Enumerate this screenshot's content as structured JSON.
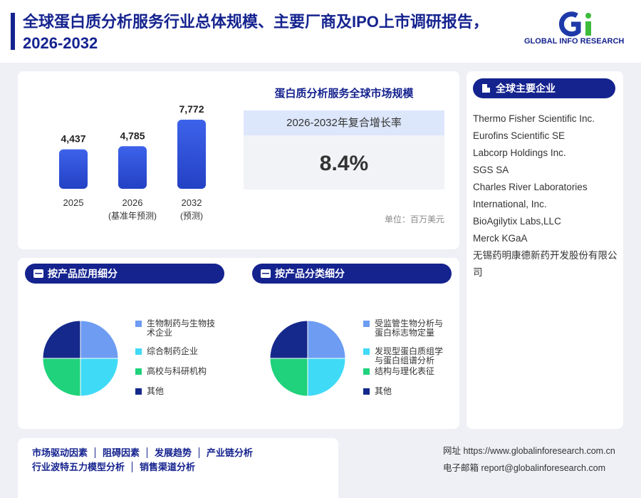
{
  "header": {
    "title": "全球蛋白质分析服务行业总体规模、主要厂商及IPO上市调研报告，2026-2032",
    "logo": "GLOBAL INFO RESEARCH"
  },
  "market_summary": {
    "cagr_label": "2026-2032年复合增长率",
    "cagr": "8.4%",
    "unit": "单位：百万美元"
  },
  "chart_data": [
    {
      "type": "bar",
      "title": "蛋白质分析服务全球市场规模",
      "categories": [
        "2025",
        "2026",
        "2032"
      ],
      "category_notes": [
        null,
        "(基准年预测)",
        "(预测)"
      ],
      "values": [
        4437,
        4785,
        7772
      ],
      "value_labels": [
        "4,437",
        "4,785",
        "7,772"
      ],
      "color": "#2341c4"
    },
    {
      "type": "pie",
      "title": "按产品应用细分",
      "categories": [
        "生物制药与生物技术企业",
        "综合制药企业",
        "高校与科研机构",
        "其他"
      ],
      "values": [
        25,
        25,
        25,
        25
      ],
      "colors": [
        "#6e9cf2",
        "#3fdaf6",
        "#1fd27b",
        "#15298c"
      ]
    },
    {
      "type": "pie",
      "title": "按产品分类细分",
      "categories": [
        "受监管生物分析与蛋白标志物定量",
        "发现型蛋白质组学与蛋白组谱分析",
        "结构与理化表征",
        "其他"
      ],
      "values": [
        25,
        25,
        25,
        25
      ],
      "colors": [
        "#6e9cf2",
        "#3fdaf6",
        "#1fd27b",
        "#15298c"
      ]
    }
  ],
  "companies": {
    "title": "全球主要企业",
    "items": [
      "Thermo Fisher Scientific Inc.",
      "Eurofins Scientific SE",
      "Labcorp Holdings Inc.",
      "SGS SA",
      "Charles River Laboratories International, Inc.",
      "BioAgilytix Labs,LLC",
      "Merck KGaA",
      "无锡药明康德新药开发股份有限公司"
    ]
  },
  "footer": {
    "links": [
      "市场驱动因素",
      "阻碍因素",
      "发展趋势",
      "产业链分析",
      "行业波特五力模型分析",
      "销售渠道分析"
    ],
    "website": "网址 https://www.globalinforesearch.com.cn",
    "email": "电子邮箱 report@globalinforesearch.com"
  }
}
